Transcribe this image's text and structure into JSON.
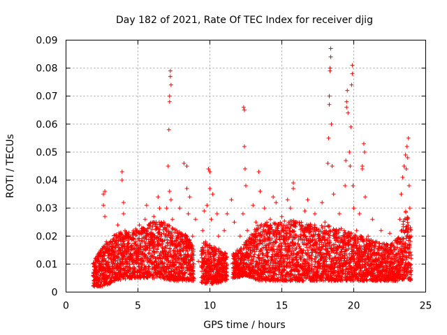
{
  "chart_data": {
    "type": "scatter",
    "title": "Day 182 of 2021, Rate Of TEC Index for receiver djig",
    "xlabel": "GPS time / hours",
    "ylabel": "ROTI / TECUs",
    "xlim": [
      0,
      25
    ],
    "ylim": [
      0,
      0.09
    ],
    "x_ticks": [
      0,
      5,
      10,
      15,
      20,
      25
    ],
    "x_tick_labels": [
      "0",
      "5",
      "10",
      "15",
      "20",
      "25"
    ],
    "y_ticks": [
      0,
      0.01,
      0.02,
      0.03,
      0.04,
      0.05,
      0.06,
      0.07,
      0.08,
      0.09
    ],
    "y_tick_labels": [
      "0",
      "0.01",
      "0.02",
      "0.03",
      "0.04",
      "0.05",
      "0.06",
      "0.07",
      "0.08",
      "0.09"
    ],
    "grid": true,
    "marker": "+",
    "color": "#ff0000",
    "series": [
      {
        "name": "ROTI",
        "points": [
          [
            1.9,
            0.006
          ],
          [
            2.0,
            0.01
          ],
          [
            2.1,
            0.004
          ],
          [
            2.2,
            0.013
          ],
          [
            2.3,
            0.008
          ],
          [
            2.4,
            0.015
          ],
          [
            2.5,
            0.011
          ],
          [
            2.6,
            0.035
          ],
          [
            2.6,
            0.031
          ],
          [
            2.7,
            0.036
          ],
          [
            2.7,
            0.027
          ],
          [
            2.8,
            0.018
          ],
          [
            2.9,
            0.009
          ],
          [
            3.0,
            0.014
          ],
          [
            3.2,
            0.007
          ],
          [
            3.4,
            0.012
          ],
          [
            3.5,
            0.02
          ],
          [
            3.6,
            0.024
          ],
          [
            3.8,
            0.015
          ],
          [
            3.9,
            0.043
          ],
          [
            3.9,
            0.04
          ],
          [
            4.0,
            0.032
          ],
          [
            4.0,
            0.028
          ],
          [
            4.1,
            0.022
          ],
          [
            4.3,
            0.01
          ],
          [
            4.5,
            0.016
          ],
          [
            4.7,
            0.019
          ],
          [
            4.9,
            0.012
          ],
          [
            5.1,
            0.024
          ],
          [
            5.3,
            0.018
          ],
          [
            5.5,
            0.026
          ],
          [
            5.6,
            0.031
          ],
          [
            5.8,
            0.014
          ],
          [
            5.9,
            0.021
          ],
          [
            6.1,
            0.027
          ],
          [
            6.2,
            0.017
          ],
          [
            6.4,
            0.034
          ],
          [
            6.5,
            0.03
          ],
          [
            6.6,
            0.02
          ],
          [
            6.8,
            0.025
          ],
          [
            6.9,
            0.012
          ],
          [
            7.0,
            0.03
          ],
          [
            7.1,
            0.045
          ],
          [
            7.15,
            0.058
          ],
          [
            7.2,
            0.07
          ],
          [
            7.2,
            0.068
          ],
          [
            7.25,
            0.079
          ],
          [
            7.25,
            0.077
          ],
          [
            7.3,
            0.074
          ],
          [
            7.2,
            0.036
          ],
          [
            7.3,
            0.033
          ],
          [
            7.4,
            0.026
          ],
          [
            7.5,
            0.015
          ],
          [
            7.7,
            0.022
          ],
          [
            7.9,
            0.03
          ],
          [
            8.1,
            0.018
          ],
          [
            8.2,
            0.046
          ],
          [
            8.4,
            0.045
          ],
          [
            8.4,
            0.037
          ],
          [
            8.5,
            0.028
          ],
          [
            8.6,
            0.034
          ],
          [
            8.8,
            0.02
          ],
          [
            9.0,
            0.026
          ],
          [
            9.2,
            0.011
          ],
          [
            9.4,
            0.009
          ],
          [
            9.5,
            0.022
          ],
          [
            9.6,
            0.029
          ],
          [
            9.7,
            0.018
          ],
          [
            9.8,
            0.031
          ],
          [
            9.9,
            0.044
          ],
          [
            10.0,
            0.043
          ],
          [
            10.0,
            0.037
          ],
          [
            10.1,
            0.026
          ],
          [
            10.2,
            0.035
          ],
          [
            10.3,
            0.015
          ],
          [
            10.5,
            0.028
          ],
          [
            10.6,
            0.02
          ],
          [
            10.8,
            0.012
          ],
          [
            11.0,
            0.022
          ],
          [
            11.2,
            0.028
          ],
          [
            11.5,
            0.033
          ],
          [
            11.7,
            0.025
          ],
          [
            11.9,
            0.015
          ],
          [
            12.1,
            0.02
          ],
          [
            12.3,
            0.028
          ],
          [
            12.35,
            0.066
          ],
          [
            12.4,
            0.065
          ],
          [
            12.4,
            0.052
          ],
          [
            12.45,
            0.044
          ],
          [
            12.5,
            0.038
          ],
          [
            12.6,
            0.022
          ],
          [
            12.8,
            0.018
          ],
          [
            13.0,
            0.031
          ],
          [
            13.2,
            0.025
          ],
          [
            13.4,
            0.043
          ],
          [
            13.5,
            0.036
          ],
          [
            13.6,
            0.02
          ],
          [
            13.8,
            0.03
          ],
          [
            14.0,
            0.014
          ],
          [
            14.2,
            0.026
          ],
          [
            14.4,
            0.034
          ],
          [
            14.6,
            0.032
          ],
          [
            14.8,
            0.021
          ],
          [
            15.0,
            0.027
          ],
          [
            15.2,
            0.018
          ],
          [
            15.4,
            0.033
          ],
          [
            15.6,
            0.03
          ],
          [
            15.8,
            0.039
          ],
          [
            15.8,
            0.037
          ],
          [
            16.0,
            0.025
          ],
          [
            16.3,
            0.02
          ],
          [
            16.6,
            0.029
          ],
          [
            16.8,
            0.033
          ],
          [
            17.0,
            0.024
          ],
          [
            17.3,
            0.028
          ],
          [
            17.6,
            0.02
          ],
          [
            17.8,
            0.032
          ],
          [
            18.0,
            0.025
          ],
          [
            18.2,
            0.046
          ],
          [
            18.25,
            0.055
          ],
          [
            18.3,
            0.067
          ],
          [
            18.3,
            0.07
          ],
          [
            18.35,
            0.08
          ],
          [
            18.35,
            0.079
          ],
          [
            18.4,
            0.084
          ],
          [
            18.4,
            0.087
          ],
          [
            18.45,
            0.06
          ],
          [
            18.5,
            0.045
          ],
          [
            18.6,
            0.035
          ],
          [
            18.8,
            0.022
          ],
          [
            19.0,
            0.028
          ],
          [
            19.2,
            0.018
          ],
          [
            19.4,
            0.038
          ],
          [
            19.45,
            0.047
          ],
          [
            19.5,
            0.066
          ],
          [
            19.5,
            0.068
          ],
          [
            19.55,
            0.072
          ],
          [
            19.6,
            0.064
          ],
          [
            19.7,
            0.05
          ],
          [
            19.75,
            0.045
          ],
          [
            19.8,
            0.059
          ],
          [
            19.85,
            0.074
          ],
          [
            19.9,
            0.078
          ],
          [
            19.9,
            0.081
          ],
          [
            19.95,
            0.038
          ],
          [
            20.0,
            0.03
          ],
          [
            20.2,
            0.022
          ],
          [
            20.4,
            0.028
          ],
          [
            20.6,
            0.045
          ],
          [
            20.6,
            0.044
          ],
          [
            20.7,
            0.053
          ],
          [
            20.75,
            0.05
          ],
          [
            20.8,
            0.034
          ],
          [
            21.0,
            0.02
          ],
          [
            21.3,
            0.026
          ],
          [
            21.6,
            0.018
          ],
          [
            21.9,
            0.022
          ],
          [
            22.2,
            0.015
          ],
          [
            22.5,
            0.021
          ],
          [
            22.8,
            0.012
          ],
          [
            23.0,
            0.018
          ],
          [
            23.2,
            0.026
          ],
          [
            23.3,
            0.035
          ],
          [
            23.4,
            0.041
          ],
          [
            23.5,
            0.045
          ],
          [
            23.6,
            0.049
          ],
          [
            23.65,
            0.044
          ],
          [
            23.7,
            0.052
          ],
          [
            23.75,
            0.048
          ],
          [
            23.8,
            0.055
          ],
          [
            23.85,
            0.038
          ],
          [
            23.9,
            0.03
          ],
          [
            24.0,
            0.012
          ]
        ],
        "band": {
          "description": "dense scatter of low ROTI values",
          "samples": [
            [
              1.9,
              0.002,
              0.011
            ],
            [
              2.5,
              0.002,
              0.016
            ],
            [
              3.5,
              0.004,
              0.021
            ],
            [
              4.5,
              0.005,
              0.022
            ],
            [
              5.5,
              0.005,
              0.024
            ],
            [
              6.5,
              0.005,
              0.026
            ],
            [
              7.5,
              0.004,
              0.023
            ],
            [
              8.5,
              0.004,
              0.02
            ],
            [
              9.2,
              0.004,
              0.012
            ],
            [
              9.6,
              0.003,
              0.018
            ],
            [
              10.5,
              0.003,
              0.016
            ],
            [
              11.0,
              0.004,
              0.014
            ],
            [
              11.8,
              0.005,
              0.014
            ],
            [
              12.5,
              0.006,
              0.018
            ],
            [
              13.5,
              0.004,
              0.025
            ],
            [
              14.5,
              0.004,
              0.025
            ],
            [
              15.5,
              0.004,
              0.026
            ],
            [
              16.5,
              0.004,
              0.025
            ],
            [
              17.5,
              0.004,
              0.024
            ],
            [
              18.5,
              0.004,
              0.024
            ],
            [
              19.5,
              0.004,
              0.022
            ],
            [
              20.5,
              0.004,
              0.02
            ],
            [
              21.5,
              0.004,
              0.018
            ],
            [
              22.5,
              0.004,
              0.017
            ],
            [
              23.2,
              0.004,
              0.02
            ],
            [
              23.6,
              0.005,
              0.03
            ],
            [
              24.0,
              0.004,
              0.022
            ]
          ],
          "gaps": [
            [
              8.9,
              9.4
            ],
            [
              11.2,
              11.6
            ]
          ]
        }
      }
    ]
  }
}
